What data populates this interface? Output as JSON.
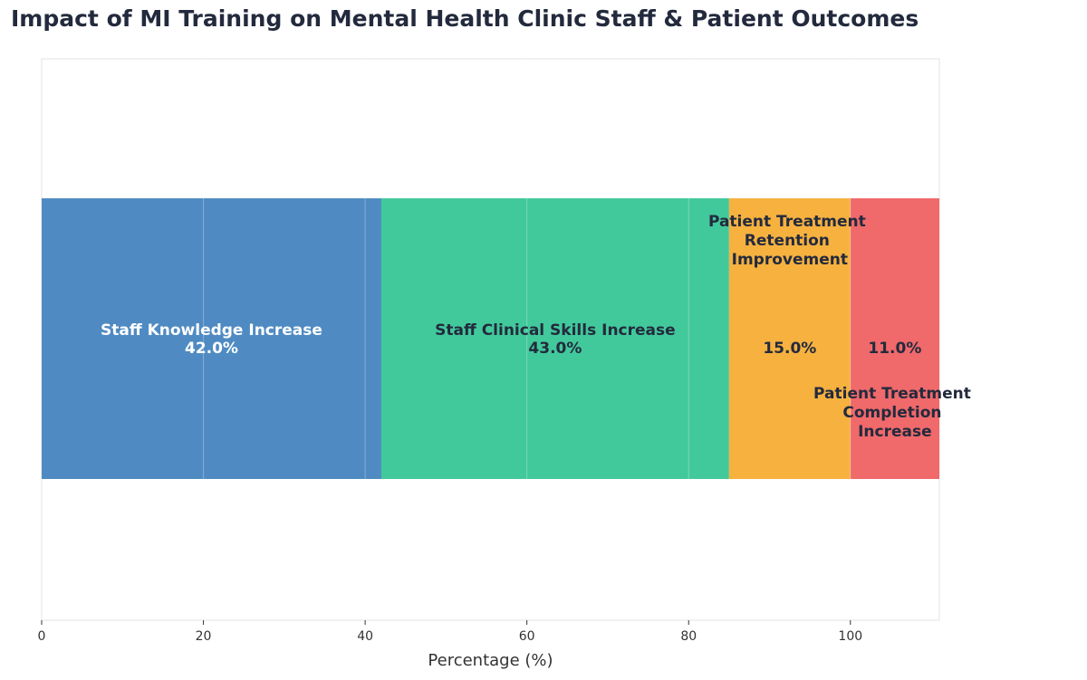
{
  "chart_data": {
    "type": "bar",
    "orientation": "horizontal-stacked",
    "title": "Impact of MI Training on Mental Health Clinic Staff & Patient Outcomes",
    "xlabel": "Percentage (%)",
    "ylabel": "",
    "xlim": [
      0,
      111
    ],
    "xticks": [
      0,
      20,
      40,
      60,
      80,
      100
    ],
    "grid": true,
    "categories": [
      "Staff Knowledge Increase",
      "Staff Clinical Skills Increase",
      "Patient Treatment Retention Improvement",
      "Patient Treatment Completion Increase"
    ],
    "values": [
      42.0,
      43.0,
      15.0,
      11.0
    ],
    "value_labels": [
      "42.0%",
      "43.0%",
      "15.0%",
      "11.0%"
    ],
    "colors": [
      "#4f8bc2",
      "#41c99b",
      "#f6b13f",
      "#f0696b"
    ],
    "label_colors": [
      "#ffffff",
      "#232a3d",
      "#232a3d",
      "#232a3d"
    ]
  }
}
